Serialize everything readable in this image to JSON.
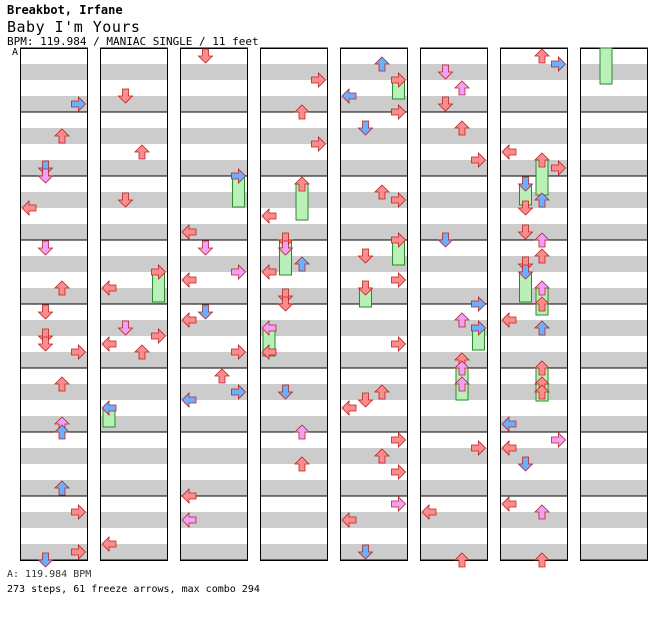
{
  "song": {
    "artist": "Breakbot, Irfane",
    "title": "Baby I'm Yours",
    "meta": "BPM: 119.984 / MANIAC SINGLE / 11 feet"
  },
  "bpm_marker": "A",
  "footer": {
    "bpm_line": "A: 119.984 BPM",
    "stats_line": "273 steps, 61 freeze arrows, max combo 294"
  },
  "colors": {
    "left": "#f7a0ff",
    "down": "#66aaff",
    "up": "#f7a0ff",
    "right": "#ff7777",
    "quarter": "#ff8c8c",
    "eighth": "#6ab0ff",
    "sixteenth": "#f0a0f8",
    "freeze": "#b8f0b8",
    "stripe": "#cccccc"
  },
  "chart": {
    "columns": 8,
    "measures_per_column": 8,
    "lanes": [
      "left",
      "down",
      "up",
      "right"
    ]
  }
}
